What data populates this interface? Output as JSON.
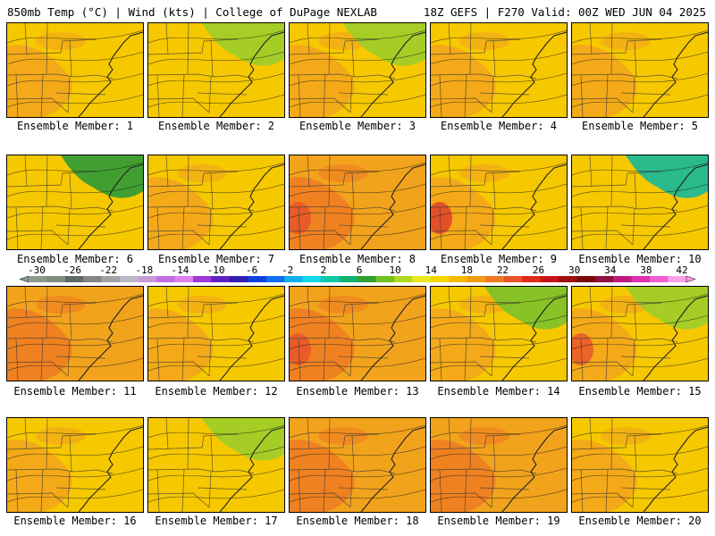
{
  "header": {
    "left_title": "850mb Temp (°C) | Wind (kts) | College of DuPage NEXLAB",
    "right_title": "18Z GEFS | F270 Valid: 00Z WED JUN 04 2025"
  },
  "members": [
    {
      "label": "Ensemble Member: 1",
      "base": "#f6c800",
      "warm": "#f2a31c",
      "cool": null,
      "hot": null
    },
    {
      "label": "Ensemble Member: 2",
      "base": "#f6c800",
      "warm": null,
      "cool": "#9ccd2a",
      "hot": null
    },
    {
      "label": "Ensemble Member: 3",
      "base": "#f6c800",
      "warm": "#f2a31c",
      "cool": "#9ccd2a",
      "hot": null
    },
    {
      "label": "Ensemble Member: 4",
      "base": "#f6c800",
      "warm": "#f2a31c",
      "cool": null,
      "hot": null
    },
    {
      "label": "Ensemble Member: 5",
      "base": "#f6c800",
      "warm": "#f2a31c",
      "cool": null,
      "hot": null
    },
    {
      "label": "Ensemble Member: 6",
      "base": "#f6c800",
      "warm": null,
      "cool": "#2e9a36",
      "hot": null
    },
    {
      "label": "Ensemble Member: 7",
      "base": "#f6c800",
      "warm": "#f2a31c",
      "cool": null,
      "hot": null
    },
    {
      "label": "Ensemble Member: 8",
      "base": "#f2a31c",
      "warm": "#ee7b22",
      "cool": null,
      "hot": "#e6532a"
    },
    {
      "label": "Ensemble Member: 9",
      "base": "#f6c800",
      "warm": "#f2a31c",
      "cool": null,
      "hot": "#e03a2a"
    },
    {
      "label": "Ensemble Member: 10",
      "base": "#f6c800",
      "warm": null,
      "cool": "#14b89a",
      "hot": null
    },
    {
      "label": "Ensemble Member: 11",
      "base": "#f2a31c",
      "warm": "#ee7b22",
      "cool": null,
      "hot": null
    },
    {
      "label": "Ensemble Member: 12",
      "base": "#f6c800",
      "warm": "#f2a31c",
      "cool": null,
      "hot": null
    },
    {
      "label": "Ensemble Member: 13",
      "base": "#f2a31c",
      "warm": "#ee7b22",
      "cool": null,
      "hot": "#e6532a"
    },
    {
      "label": "Ensemble Member: 14",
      "base": "#f6c800",
      "warm": "#f2a31c",
      "cool": "#7cc12a",
      "hot": null
    },
    {
      "label": "Ensemble Member: 15",
      "base": "#f6c800",
      "warm": "#f2a31c",
      "cool": "#9ccd2a",
      "hot": "#e6532a"
    },
    {
      "label": "Ensemble Member: 16",
      "base": "#f6c800",
      "warm": "#f2a31c",
      "cool": null,
      "hot": null
    },
    {
      "label": "Ensemble Member: 17",
      "base": "#f6c800",
      "warm": null,
      "cool": "#9ccd2a",
      "hot": null
    },
    {
      "label": "Ensemble Member: 18",
      "base": "#f2a31c",
      "warm": "#ee7b22",
      "cool": null,
      "hot": null
    },
    {
      "label": "Ensemble Member: 19",
      "base": "#f2a31c",
      "warm": "#ee7b22",
      "cool": null,
      "hot": null
    },
    {
      "label": "Ensemble Member: 20",
      "base": "#f6c800",
      "warm": "#f2a31c",
      "cool": null,
      "hot": null
    }
  ],
  "colorbar": {
    "tick_labels": [
      "-30",
      "-26",
      "-22",
      "-18",
      "-14",
      "-10",
      "-6",
      "-2",
      "2",
      "6",
      "10",
      "14",
      "18",
      "22",
      "26",
      "30",
      "34",
      "38",
      "42"
    ],
    "colors": [
      "#8a9a8a",
      "#7f8c7f",
      "#5f6a6a",
      "#858585",
      "#a3a3a3",
      "#b9b9c9",
      "#c89ad8",
      "#c070e0",
      "#e080f0",
      "#9a38d8",
      "#6020c8",
      "#3020b0",
      "#1040e0",
      "#1070f0",
      "#10b0f0",
      "#10d8e8",
      "#10c8a8",
      "#10b070",
      "#30a030",
      "#70c020",
      "#b0d820",
      "#e8e820",
      "#f6d400",
      "#f6b800",
      "#f29a10",
      "#ee7a22",
      "#e8542a",
      "#e02a1a",
      "#c81418",
      "#a01010",
      "#7a0a0a",
      "#901040",
      "#c01880",
      "#e030b0",
      "#f060d0",
      "#f8a0e8"
    ]
  }
}
